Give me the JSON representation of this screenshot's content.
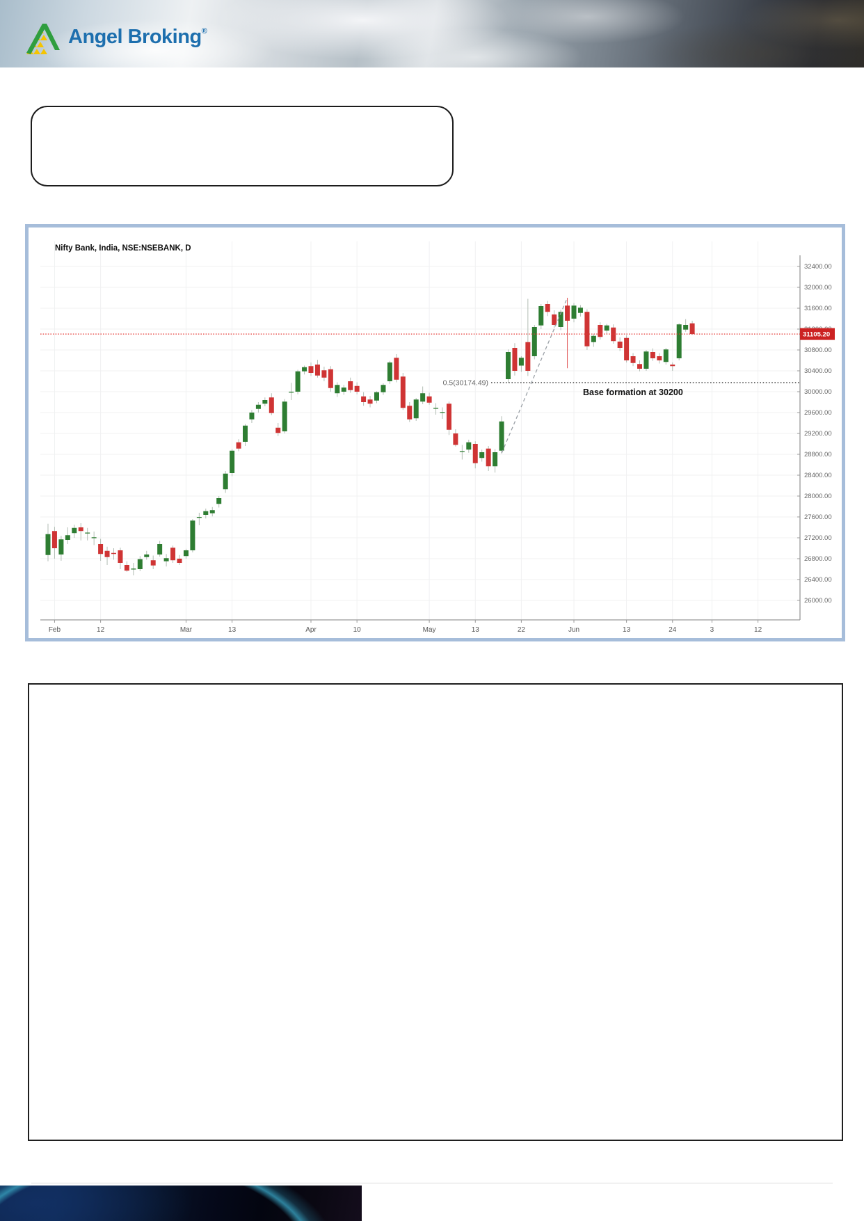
{
  "header": {
    "brand": "Angel Broking",
    "registered_mark": "®"
  },
  "chart": {
    "title": "Nifty Bank, India, NSE:NSEBANK, D"
  },
  "chart_data": {
    "type": "candlestick",
    "title": "Nifty Bank, India, NSE:NSEBANK, D",
    "symbol": "NSE:NSEBANK",
    "region": "India",
    "timeframe": "D",
    "last_price": 31105.2,
    "last_price_label": "31105.20",
    "y_axis": {
      "min": 26000,
      "max": 32400,
      "step": 400,
      "labels": [
        "32400.00",
        "32000.00",
        "31600.00",
        "31200.00",
        "30800.00",
        "30400.00",
        "30000.00",
        "29600.00",
        "29200.00",
        "28800.00",
        "28400.00",
        "28000.00",
        "27600.00",
        "27200.00",
        "26800.00",
        "26400.00",
        "26000.00"
      ]
    },
    "x_ticks": [
      {
        "label": "Feb",
        "i": 1
      },
      {
        "label": "12",
        "i": 8
      },
      {
        "label": "Mar",
        "i": 21
      },
      {
        "label": "13",
        "i": 28
      },
      {
        "label": "Apr",
        "i": 40
      },
      {
        "label": "10",
        "i": 47
      },
      {
        "label": "May",
        "i": 58
      },
      {
        "label": "13",
        "i": 65
      },
      {
        "label": "22",
        "i": 72
      },
      {
        "label": "Jun",
        "i": 80
      },
      {
        "label": "13",
        "i": 88
      },
      {
        "label": "24",
        "i": 95
      },
      {
        "label": "3",
        "i": 101
      },
      {
        "label": "12",
        "i": 108
      }
    ],
    "annotations": {
      "fib": {
        "level": 30174.49,
        "label": "0.5(30174.49)"
      },
      "base": {
        "text": "Base formation at 30200",
        "level": 30200
      },
      "trendline": {
        "from_candle": 69,
        "to_candle": 79
      }
    },
    "candles": [
      [
        26870,
        27470,
        26750,
        27270
      ],
      [
        27330,
        27410,
        26800,
        27000
      ],
      [
        26880,
        27240,
        26760,
        27170
      ],
      [
        27160,
        27400,
        27080,
        27250
      ],
      [
        27290,
        27450,
        27200,
        27390
      ],
      [
        27400,
        27480,
        27150,
        27330
      ],
      [
        27290,
        27390,
        27150,
        27300
      ],
      [
        27200,
        27320,
        27060,
        27210
      ],
      [
        27080,
        27180,
        26760,
        26890
      ],
      [
        26950,
        27030,
        26680,
        26830
      ],
      [
        26910,
        27000,
        26780,
        26890
      ],
      [
        26960,
        27010,
        26600,
        26720
      ],
      [
        26680,
        26750,
        26550,
        26570
      ],
      [
        26600,
        26720,
        26480,
        26610
      ],
      [
        26600,
        26850,
        26560,
        26790
      ],
      [
        26830,
        26950,
        26780,
        26880
      ],
      [
        26770,
        26860,
        26600,
        26670
      ],
      [
        26880,
        27140,
        26840,
        27080
      ],
      [
        26750,
        26890,
        26650,
        26810
      ],
      [
        27010,
        27050,
        26720,
        26770
      ],
      [
        26800,
        26870,
        26680,
        26720
      ],
      [
        26850,
        26990,
        26800,
        26960
      ],
      [
        26960,
        27560,
        26920,
        27530
      ],
      [
        27590,
        27680,
        27440,
        27600
      ],
      [
        27640,
        27760,
        27570,
        27710
      ],
      [
        27670,
        27790,
        27610,
        27730
      ],
      [
        27850,
        28000,
        27780,
        27960
      ],
      [
        28130,
        28480,
        28060,
        28430
      ],
      [
        28440,
        28900,
        28380,
        28870
      ],
      [
        29030,
        29090,
        28860,
        28910
      ],
      [
        29040,
        29380,
        28960,
        29350
      ],
      [
        29470,
        29650,
        29400,
        29600
      ],
      [
        29670,
        29800,
        29600,
        29750
      ],
      [
        29770,
        29890,
        29720,
        29840
      ],
      [
        29890,
        29970,
        29550,
        29590
      ],
      [
        29310,
        29400,
        29150,
        29210
      ],
      [
        29240,
        29860,
        29200,
        29810
      ],
      [
        30000,
        30170,
        29840,
        30000
      ],
      [
        30000,
        30420,
        29950,
        30390
      ],
      [
        30390,
        30500,
        30330,
        30470
      ],
      [
        30490,
        30560,
        30300,
        30360
      ],
      [
        30520,
        30610,
        30270,
        30310
      ],
      [
        30410,
        30480,
        30200,
        30270
      ],
      [
        30430,
        30490,
        30000,
        30070
      ],
      [
        29970,
        30180,
        29900,
        30130
      ],
      [
        30000,
        30130,
        29940,
        30080
      ],
      [
        30200,
        30270,
        29980,
        30030
      ],
      [
        30110,
        30180,
        29950,
        30000
      ],
      [
        29910,
        29990,
        29730,
        29800
      ],
      [
        29850,
        29920,
        29700,
        29770
      ],
      [
        29830,
        30010,
        29780,
        29990
      ],
      [
        29990,
        30160,
        29940,
        30130
      ],
      [
        30200,
        30590,
        30150,
        30560
      ],
      [
        30650,
        30720,
        30180,
        30230
      ],
      [
        30290,
        30360,
        29650,
        29690
      ],
      [
        29730,
        29800,
        29420,
        29470
      ],
      [
        29490,
        29880,
        29440,
        29850
      ],
      [
        29810,
        30100,
        29760,
        29970
      ],
      [
        29910,
        29980,
        29750,
        29790
      ],
      [
        29690,
        29780,
        29560,
        29690
      ],
      [
        29600,
        29700,
        29480,
        29610
      ],
      [
        29770,
        29810,
        29170,
        29270
      ],
      [
        29200,
        29280,
        28950,
        28980
      ],
      [
        28850,
        28980,
        28700,
        28860
      ],
      [
        28890,
        29080,
        28830,
        29030
      ],
      [
        29000,
        29050,
        28530,
        28630
      ],
      [
        28730,
        28890,
        28660,
        28840
      ],
      [
        28910,
        28960,
        28480,
        28570
      ],
      [
        28570,
        28900,
        28450,
        28840
      ],
      [
        28870,
        29530,
        28820,
        29430
      ],
      [
        30240,
        30810,
        30170,
        30760
      ],
      [
        30840,
        30930,
        30310,
        30400
      ],
      [
        30500,
        30680,
        30380,
        30650
      ],
      [
        30950,
        31780,
        30300,
        30400
      ],
      [
        30680,
        31280,
        30620,
        31240
      ],
      [
        31270,
        31680,
        31200,
        31640
      ],
      [
        31680,
        31740,
        31450,
        31530
      ],
      [
        31480,
        31560,
        31220,
        31280
      ],
      [
        31240,
        31570,
        31180,
        31530
      ],
      [
        31650,
        31800,
        30450,
        31360,
        "r"
      ],
      [
        31400,
        31700,
        31330,
        31650
      ],
      [
        31510,
        31660,
        31440,
        31610
      ],
      [
        31530,
        31580,
        30800,
        30870
      ],
      [
        30950,
        31110,
        30860,
        31070
      ],
      [
        31280,
        31330,
        31000,
        31050
      ],
      [
        31170,
        31300,
        31110,
        31270
      ],
      [
        31230,
        31290,
        30920,
        30970
      ],
      [
        30960,
        31040,
        30780,
        30840
      ],
      [
        31030,
        31080,
        30560,
        30600
      ],
      [
        30680,
        30740,
        30490,
        30550
      ],
      [
        30530,
        30600,
        30390,
        30440
      ],
      [
        30440,
        30800,
        30400,
        30770
      ],
      [
        30760,
        30830,
        30590,
        30640
      ],
      [
        30680,
        30740,
        30540,
        30600
      ],
      [
        30570,
        30840,
        30520,
        30810
      ],
      [
        30520,
        30560,
        30400,
        30490
      ],
      [
        30640,
        31310,
        30600,
        31290
      ],
      [
        31190,
        31390,
        31150,
        31280
      ],
      [
        31310,
        31360,
        31090,
        31105.2
      ]
    ],
    "colors": {
      "up": "#2e7d32",
      "down": "#cf3434",
      "wick": "#b2bdb4",
      "red_wick": "#e05555",
      "last_price_line": "#e53935",
      "badge_bg": "#cc2222",
      "badge_text": "#ffffff",
      "grid": "#f0f1f2",
      "axis_line": "#999999",
      "axis_text": "#666666",
      "fib_line": "#3c3c3c",
      "fib_text": "#666666",
      "base_text": "#111111",
      "trendline": "#9aa0a6",
      "panel_border": "#a6bdda"
    }
  }
}
